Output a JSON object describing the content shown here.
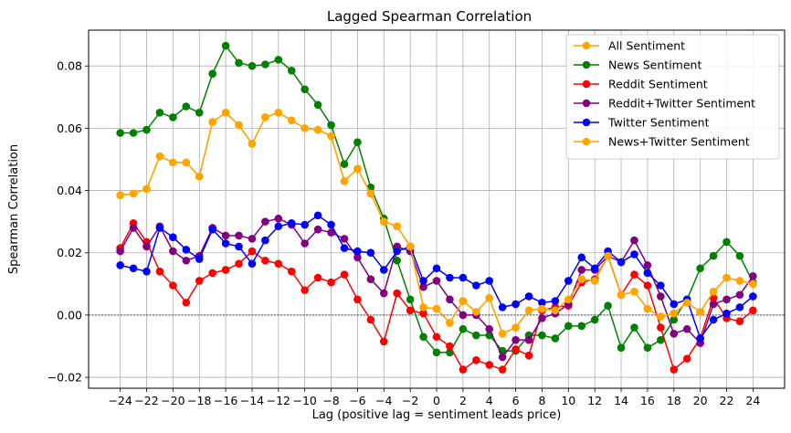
{
  "chart_data": {
    "type": "line",
    "title": "Lagged Spearman Correlation",
    "xlabel": "Lag (positive lag = sentiment leads price)",
    "ylabel": "Spearman Correlation",
    "xlim": [
      -26.4,
      26.4
    ],
    "ylim": [
      -0.0235,
      0.0915
    ],
    "xticks": [
      -24,
      -22,
      -20,
      -18,
      -16,
      -14,
      -12,
      -10,
      -8,
      -6,
      -4,
      -2,
      0,
      2,
      4,
      6,
      8,
      10,
      12,
      14,
      16,
      18,
      20,
      22,
      24
    ],
    "yticks": [
      -0.02,
      0.0,
      0.02,
      0.04,
      0.06,
      0.08
    ],
    "ytick_labels": [
      "−0.02",
      "0.00",
      "0.02",
      "0.04",
      "0.06",
      "0.08"
    ],
    "grid": true,
    "legend_position": "upper right",
    "zero_line": true,
    "x": [
      -24,
      -23,
      -22,
      -21,
      -20,
      -19,
      -18,
      -17,
      -16,
      -15,
      -14,
      -13,
      -12,
      -11,
      -10,
      -9,
      -8,
      -7,
      -6,
      -5,
      -4,
      -3,
      -2,
      -1,
      0,
      1,
      2,
      3,
      4,
      5,
      6,
      7,
      8,
      9,
      10,
      11,
      12,
      13,
      14,
      15,
      16,
      17,
      18,
      19,
      20,
      21,
      22,
      23,
      24
    ],
    "series": [
      {
        "name": "All Sentiment",
        "color": "#ffa500",
        "values": [
          0.0385,
          0.039,
          0.0405,
          0.051,
          0.049,
          0.049,
          0.0445,
          0.062,
          0.065,
          0.061,
          0.055,
          0.0635,
          0.065,
          0.0625,
          0.06,
          0.0595,
          0.0575,
          0.043,
          0.047,
          0.039,
          0.03,
          0.0285,
          0.022,
          0.0025,
          0.002,
          -0.0025,
          0.0045,
          0.001,
          0.0055,
          -0.006,
          -0.004,
          0.0015,
          0.002,
          0.0015,
          0.005,
          0.0115,
          0.011,
          0.019,
          0.0065,
          0.0075,
          0.002,
          -0.0005,
          0.0005,
          0.004,
          0.001,
          0.0075,
          0.012,
          0.011,
          0.01
        ]
      },
      {
        "name": "News Sentiment",
        "color": "#008000",
        "values": [
          0.0585,
          0.0585,
          0.0595,
          0.065,
          0.0635,
          0.067,
          0.065,
          0.0775,
          0.0865,
          0.081,
          0.08,
          0.0805,
          0.082,
          0.0785,
          0.0725,
          0.0675,
          0.061,
          0.0485,
          0.0555,
          0.041,
          0.031,
          0.0175,
          0.005,
          -0.007,
          -0.012,
          -0.012,
          -0.0045,
          -0.0065,
          -0.0065,
          -0.0115,
          -0.0115,
          -0.0065,
          -0.0065,
          -0.0075,
          -0.0035,
          -0.0035,
          -0.0015,
          0.003,
          -0.0105,
          -0.004,
          -0.0105,
          -0.008,
          -0.0015,
          0.005,
          0.015,
          0.019,
          0.0235,
          0.019,
          0.0105
        ]
      },
      {
        "name": "Reddit Sentiment",
        "color": "#ff0000",
        "values": [
          0.0215,
          0.0295,
          0.0235,
          0.014,
          0.0095,
          0.004,
          0.011,
          0.0135,
          0.0145,
          0.0165,
          0.0205,
          0.0175,
          0.0165,
          0.014,
          0.008,
          0.012,
          0.0105,
          0.013,
          0.005,
          -0.0015,
          -0.0085,
          0.007,
          0.0015,
          0.0005,
          -0.007,
          -0.01,
          -0.0175,
          -0.0145,
          -0.016,
          -0.0175,
          -0.011,
          -0.013,
          0.0015,
          0.0025,
          0.003,
          0.0105,
          0.0115,
          0.019,
          0.0065,
          0.013,
          0.0095,
          -0.004,
          -0.0175,
          -0.014,
          -0.0075,
          0.0055,
          -0.001,
          -0.002,
          0.0015
        ]
      },
      {
        "name": "Reddit+Twitter Sentiment",
        "color": "#800080",
        "values": [
          0.0205,
          0.028,
          0.022,
          0.0285,
          0.0205,
          0.0175,
          0.019,
          0.028,
          0.0255,
          0.0255,
          0.0245,
          0.03,
          0.031,
          0.029,
          0.023,
          0.0275,
          0.0265,
          0.0245,
          0.0185,
          0.0115,
          0.007,
          0.022,
          0.0205,
          0.009,
          0.011,
          0.005,
          0.0,
          0.0,
          -0.0045,
          -0.0135,
          -0.008,
          -0.008,
          -0.001,
          0.0005,
          0.0035,
          0.0145,
          0.0145,
          0.019,
          0.017,
          0.024,
          0.016,
          0.006,
          -0.006,
          -0.0045,
          -0.009,
          0.0035,
          0.005,
          0.0065,
          0.0125
        ]
      },
      {
        "name": "Twitter Sentiment",
        "color": "#0000ff",
        "values": [
          0.016,
          0.015,
          0.014,
          0.028,
          0.025,
          0.021,
          0.018,
          0.0275,
          0.023,
          0.022,
          0.0165,
          0.024,
          0.0285,
          0.0295,
          0.029,
          0.032,
          0.029,
          0.0215,
          0.0205,
          0.02,
          0.0145,
          0.0205,
          0.022,
          0.011,
          0.015,
          0.012,
          0.012,
          0.0095,
          0.011,
          0.0025,
          0.0035,
          0.006,
          0.004,
          0.0045,
          0.011,
          0.0185,
          0.015,
          0.0205,
          0.017,
          0.0195,
          0.0135,
          0.0095,
          0.0035,
          0.005,
          -0.0075,
          -0.0015,
          0.0005,
          0.0025,
          0.006
        ]
      },
      {
        "name": "News+Twitter Sentiment",
        "color": "#ffa500",
        "values": [
          0.0385,
          0.039,
          0.0405,
          0.051,
          0.049,
          0.049,
          0.0445,
          0.062,
          0.065,
          0.061,
          0.055,
          0.0635,
          0.065,
          0.0625,
          0.06,
          0.0595,
          0.0575,
          0.043,
          0.047,
          0.039,
          0.03,
          0.0285,
          0.022,
          0.0025,
          0.002,
          -0.0025,
          0.0045,
          0.001,
          0.0055,
          -0.006,
          -0.004,
          0.0015,
          0.002,
          0.0015,
          0.005,
          0.0115,
          0.011,
          0.019,
          0.0065,
          0.0075,
          0.002,
          -0.0005,
          0.0005,
          0.004,
          0.001,
          0.0075,
          0.012,
          0.011,
          0.01
        ]
      }
    ]
  }
}
